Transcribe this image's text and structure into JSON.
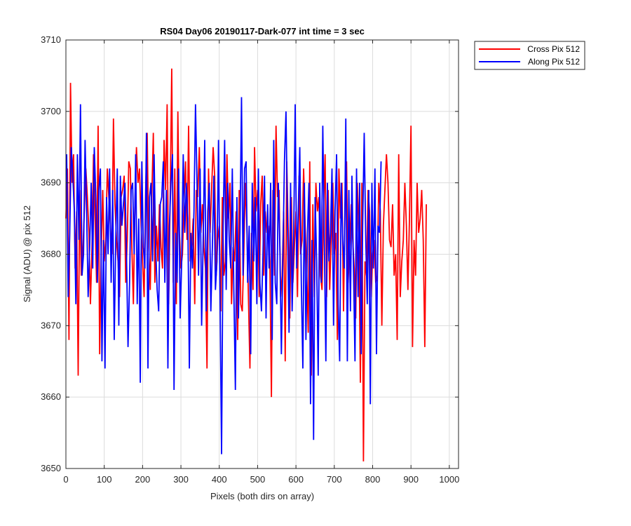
{
  "chart_data": {
    "type": "line",
    "title": "RS04 Day06 20190117-Dark-077 int time = 3 sec",
    "xlabel": "Pixels (both dirs on array)",
    "ylabel": "Signal (ADU) @ pix 512",
    "xlim": [
      0,
      1024
    ],
    "ylim": [
      3650,
      3710
    ],
    "xticks": [
      0,
      100,
      200,
      300,
      400,
      500,
      600,
      700,
      800,
      900,
      1000
    ],
    "yticks": [
      3650,
      3660,
      3670,
      3680,
      3690,
      3700,
      3710
    ],
    "grid": true,
    "legend_position": "outside-top-right",
    "series": [
      {
        "name": "Cross Pix 512",
        "color": "#ff0000",
        "x_start": 0,
        "x_step": 4,
        "values": [
          3685,
          3692,
          3668,
          3704,
          3690,
          3694,
          3678,
          3686,
          3663,
          3689,
          3677,
          3680,
          3686,
          3692,
          3688,
          3683,
          3673,
          3681,
          3694,
          3685,
          3676,
          3698,
          3666,
          3680,
          3689,
          3679,
          3682,
          3692,
          3688,
          3684,
          3680,
          3699,
          3687,
          3682,
          3679,
          3674,
          3688,
          3689,
          3691,
          3676,
          3682,
          3693,
          3692,
          3681,
          3673,
          3687,
          3695,
          3690,
          3692,
          3684,
          3679,
          3674,
          3689,
          3697,
          3681,
          3675,
          3688,
          3697,
          3676,
          3684,
          3679,
          3687,
          3681,
          3678,
          3696,
          3689,
          3701,
          3673,
          3688,
          3706,
          3676,
          3692,
          3673,
          3700,
          3683,
          3678,
          3680,
          3687,
          3693,
          3682,
          3698,
          3679,
          3681,
          3685,
          3673,
          3689,
          3688,
          3695,
          3683,
          3687,
          3681,
          3678,
          3664,
          3692,
          3683,
          3689,
          3695,
          3691,
          3677,
          3682,
          3684,
          3672,
          3688,
          3677,
          3679,
          3694,
          3685,
          3690,
          3673,
          3681,
          3679,
          3686,
          3668,
          3689,
          3673,
          3672,
          3680,
          3690,
          3684,
          3674,
          3664,
          3683,
          3675,
          3695,
          3686,
          3689,
          3674,
          3687,
          3691,
          3677,
          3686,
          3683,
          3684,
          3679,
          3660,
          3689,
          3677,
          3698,
          3688,
          3689,
          3674,
          3677,
          3686,
          3665,
          3693,
          3683,
          3671,
          3688,
          3676,
          3681,
          3686,
          3674,
          3691,
          3680,
          3682,
          3692,
          3684,
          3678,
          3669,
          3693,
          3663,
          3687,
          3674,
          3690,
          3686,
          3688,
          3677,
          3675,
          3686,
          3694,
          3674,
          3689,
          3675,
          3682,
          3690,
          3680,
          3683,
          3668,
          3692,
          3685,
          3690,
          3672,
          3687,
          3693,
          3676,
          3681,
          3687,
          3682,
          3678,
          3671,
          3690,
          3683,
          3662,
          3690,
          3651,
          3679,
          3677,
          3689,
          3686,
          3674,
          3680,
          3682,
          3676,
          3677,
          3690,
          3686,
          3670,
          3684,
          3689,
          3694,
          3690,
          3682,
          3681,
          3687,
          3677,
          3680,
          3668,
          3694,
          3674,
          3679,
          3682,
          3690,
          3684,
          3675,
          3685,
          3698,
          3667,
          3682,
          3677,
          3690,
          3683,
          3685,
          3689,
          3682,
          3667,
          3687
        ]
      },
      {
        "name": "Along Pix 512",
        "color": "#0000ff",
        "x_start": 2,
        "x_step": 4,
        "values": [
          3694,
          3674,
          3683,
          3695,
          3691,
          3686,
          3673,
          3694,
          3682,
          3701,
          3677,
          3680,
          3696,
          3686,
          3674,
          3681,
          3690,
          3678,
          3695,
          3688,
          3676,
          3689,
          3692,
          3665,
          3682,
          3664,
          3688,
          3680,
          3692,
          3676,
          3689,
          3668,
          3682,
          3692,
          3670,
          3691,
          3684,
          3687,
          3690,
          3680,
          3667,
          3676,
          3689,
          3690,
          3680,
          3694,
          3673,
          3685,
          3662,
          3693,
          3681,
          3678,
          3697,
          3664,
          3688,
          3690,
          3679,
          3694,
          3681,
          3675,
          3672,
          3687,
          3688,
          3693,
          3676,
          3689,
          3664,
          3684,
          3690,
          3694,
          3661,
          3683,
          3676,
          3692,
          3671,
          3679,
          3694,
          3683,
          3690,
          3685,
          3664,
          3683,
          3678,
          3686,
          3701,
          3690,
          3677,
          3692,
          3670,
          3682,
          3696,
          3672,
          3686,
          3690,
          3672,
          3681,
          3691,
          3675,
          3679,
          3696,
          3674,
          3652,
          3684,
          3696,
          3675,
          3690,
          3682,
          3678,
          3692,
          3675,
          3661,
          3688,
          3671,
          3683,
          3702,
          3677,
          3692,
          3693,
          3676,
          3684,
          3666,
          3690,
          3679,
          3688,
          3673,
          3692,
          3676,
          3672,
          3680,
          3691,
          3671,
          3687,
          3678,
          3690,
          3668,
          3696,
          3676,
          3673,
          3690,
          3681,
          3666,
          3680,
          3693,
          3700,
          3684,
          3669,
          3690,
          3672,
          3682,
          3701,
          3678,
          3686,
          3695,
          3676,
          3664,
          3690,
          3668,
          3683,
          3690,
          3659,
          3682,
          3654,
          3688,
          3679,
          3663,
          3690,
          3676,
          3698,
          3682,
          3665,
          3690,
          3679,
          3683,
          3692,
          3670,
          3686,
          3694,
          3673,
          3665,
          3690,
          3682,
          3678,
          3699,
          3665,
          3689,
          3672,
          3691,
          3678,
          3665,
          3692,
          3674,
          3690,
          3666,
          3684,
          3697,
          3682,
          3673,
          3689,
          3659,
          3690,
          3678,
          3692,
          3666,
          3684,
          3683,
          3693
        ]
      }
    ]
  }
}
